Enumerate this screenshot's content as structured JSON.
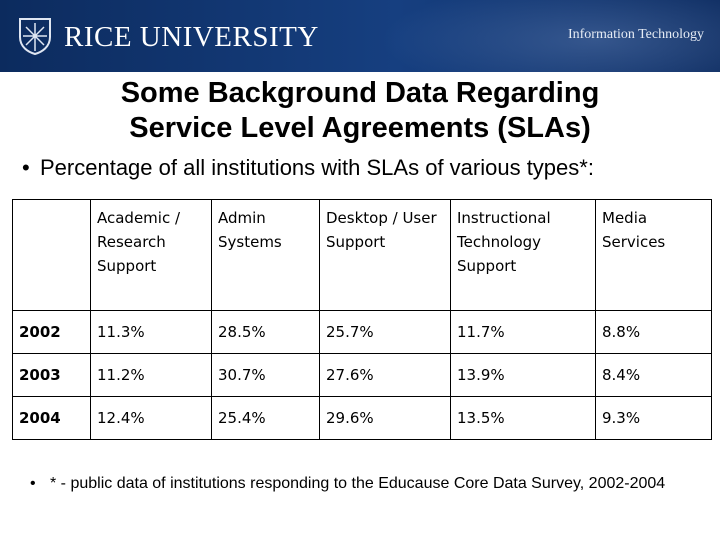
{
  "header": {
    "university": "RICE UNIVERSITY",
    "department": "Information Technology",
    "brand_color": "#163f80"
  },
  "slide": {
    "title_line1": "Some Background Data Regarding",
    "title_line2": "Service Level Agreements (SLAs)",
    "bullet": "Percentage of all institutions with SLAs of various types*:",
    "footnote": "* - public data of institutions responding to the Educause Core Data Survey, 2002-2004"
  },
  "table": {
    "columns": [
      "Academic / Research Support",
      "Admin Systems",
      "Desktop / User Support",
      "Instructional Technology Support",
      "Media Services"
    ],
    "rows": [
      {
        "year": "2002",
        "values": [
          "11.3%",
          "28.5%",
          "25.7%",
          "11.7%",
          "8.8%"
        ]
      },
      {
        "year": "2003",
        "values": [
          "11.2%",
          "30.7%",
          "27.6%",
          "13.9%",
          "8.4%"
        ]
      },
      {
        "year": "2004",
        "values": [
          "12.4%",
          "25.4%",
          "29.6%",
          "13.5%",
          "9.3%"
        ]
      }
    ]
  }
}
